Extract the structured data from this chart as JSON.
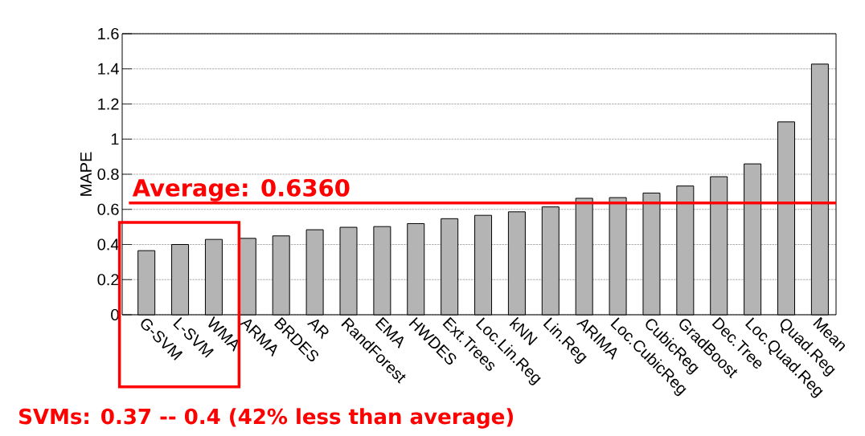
{
  "chart_data": {
    "type": "bar",
    "ylabel": "MAPE",
    "categories": [
      "G-SVM",
      "L-SVM",
      "WMA",
      "ARMA",
      "BRDES",
      "AR",
      "RandForest",
      "EMA",
      "HWDES",
      "Ext.Trees",
      "Loc.Lin.Reg",
      "kNN",
      "Lin.Reg",
      "ARIMA",
      "Loc.CubicReg",
      "CubicReg",
      "GradBoost",
      "Dec.Tree",
      "Loc.Quad.Reg",
      "Quad.Reg",
      "Mean"
    ],
    "values": [
      0.365,
      0.4,
      0.429,
      0.435,
      0.449,
      0.484,
      0.498,
      0.502,
      0.519,
      0.547,
      0.566,
      0.586,
      0.614,
      0.663,
      0.667,
      0.693,
      0.733,
      0.786,
      0.859,
      1.098,
      1.427
    ],
    "color": "#b4b4b4",
    "ylim": [
      0,
      1.6
    ],
    "yticks": [
      0,
      0.2,
      0.4,
      0.6,
      0.8,
      1,
      1.2,
      1.4,
      1.6
    ],
    "grid": "y",
    "ref_lines": [
      {
        "axis": "y",
        "value": 0.636,
        "label": "Average: 0.6360",
        "color": "#ff0000"
      }
    ],
    "annotations": [
      "SVMs: 0.37 -- 0.4 (42% less than average)"
    ]
  }
}
